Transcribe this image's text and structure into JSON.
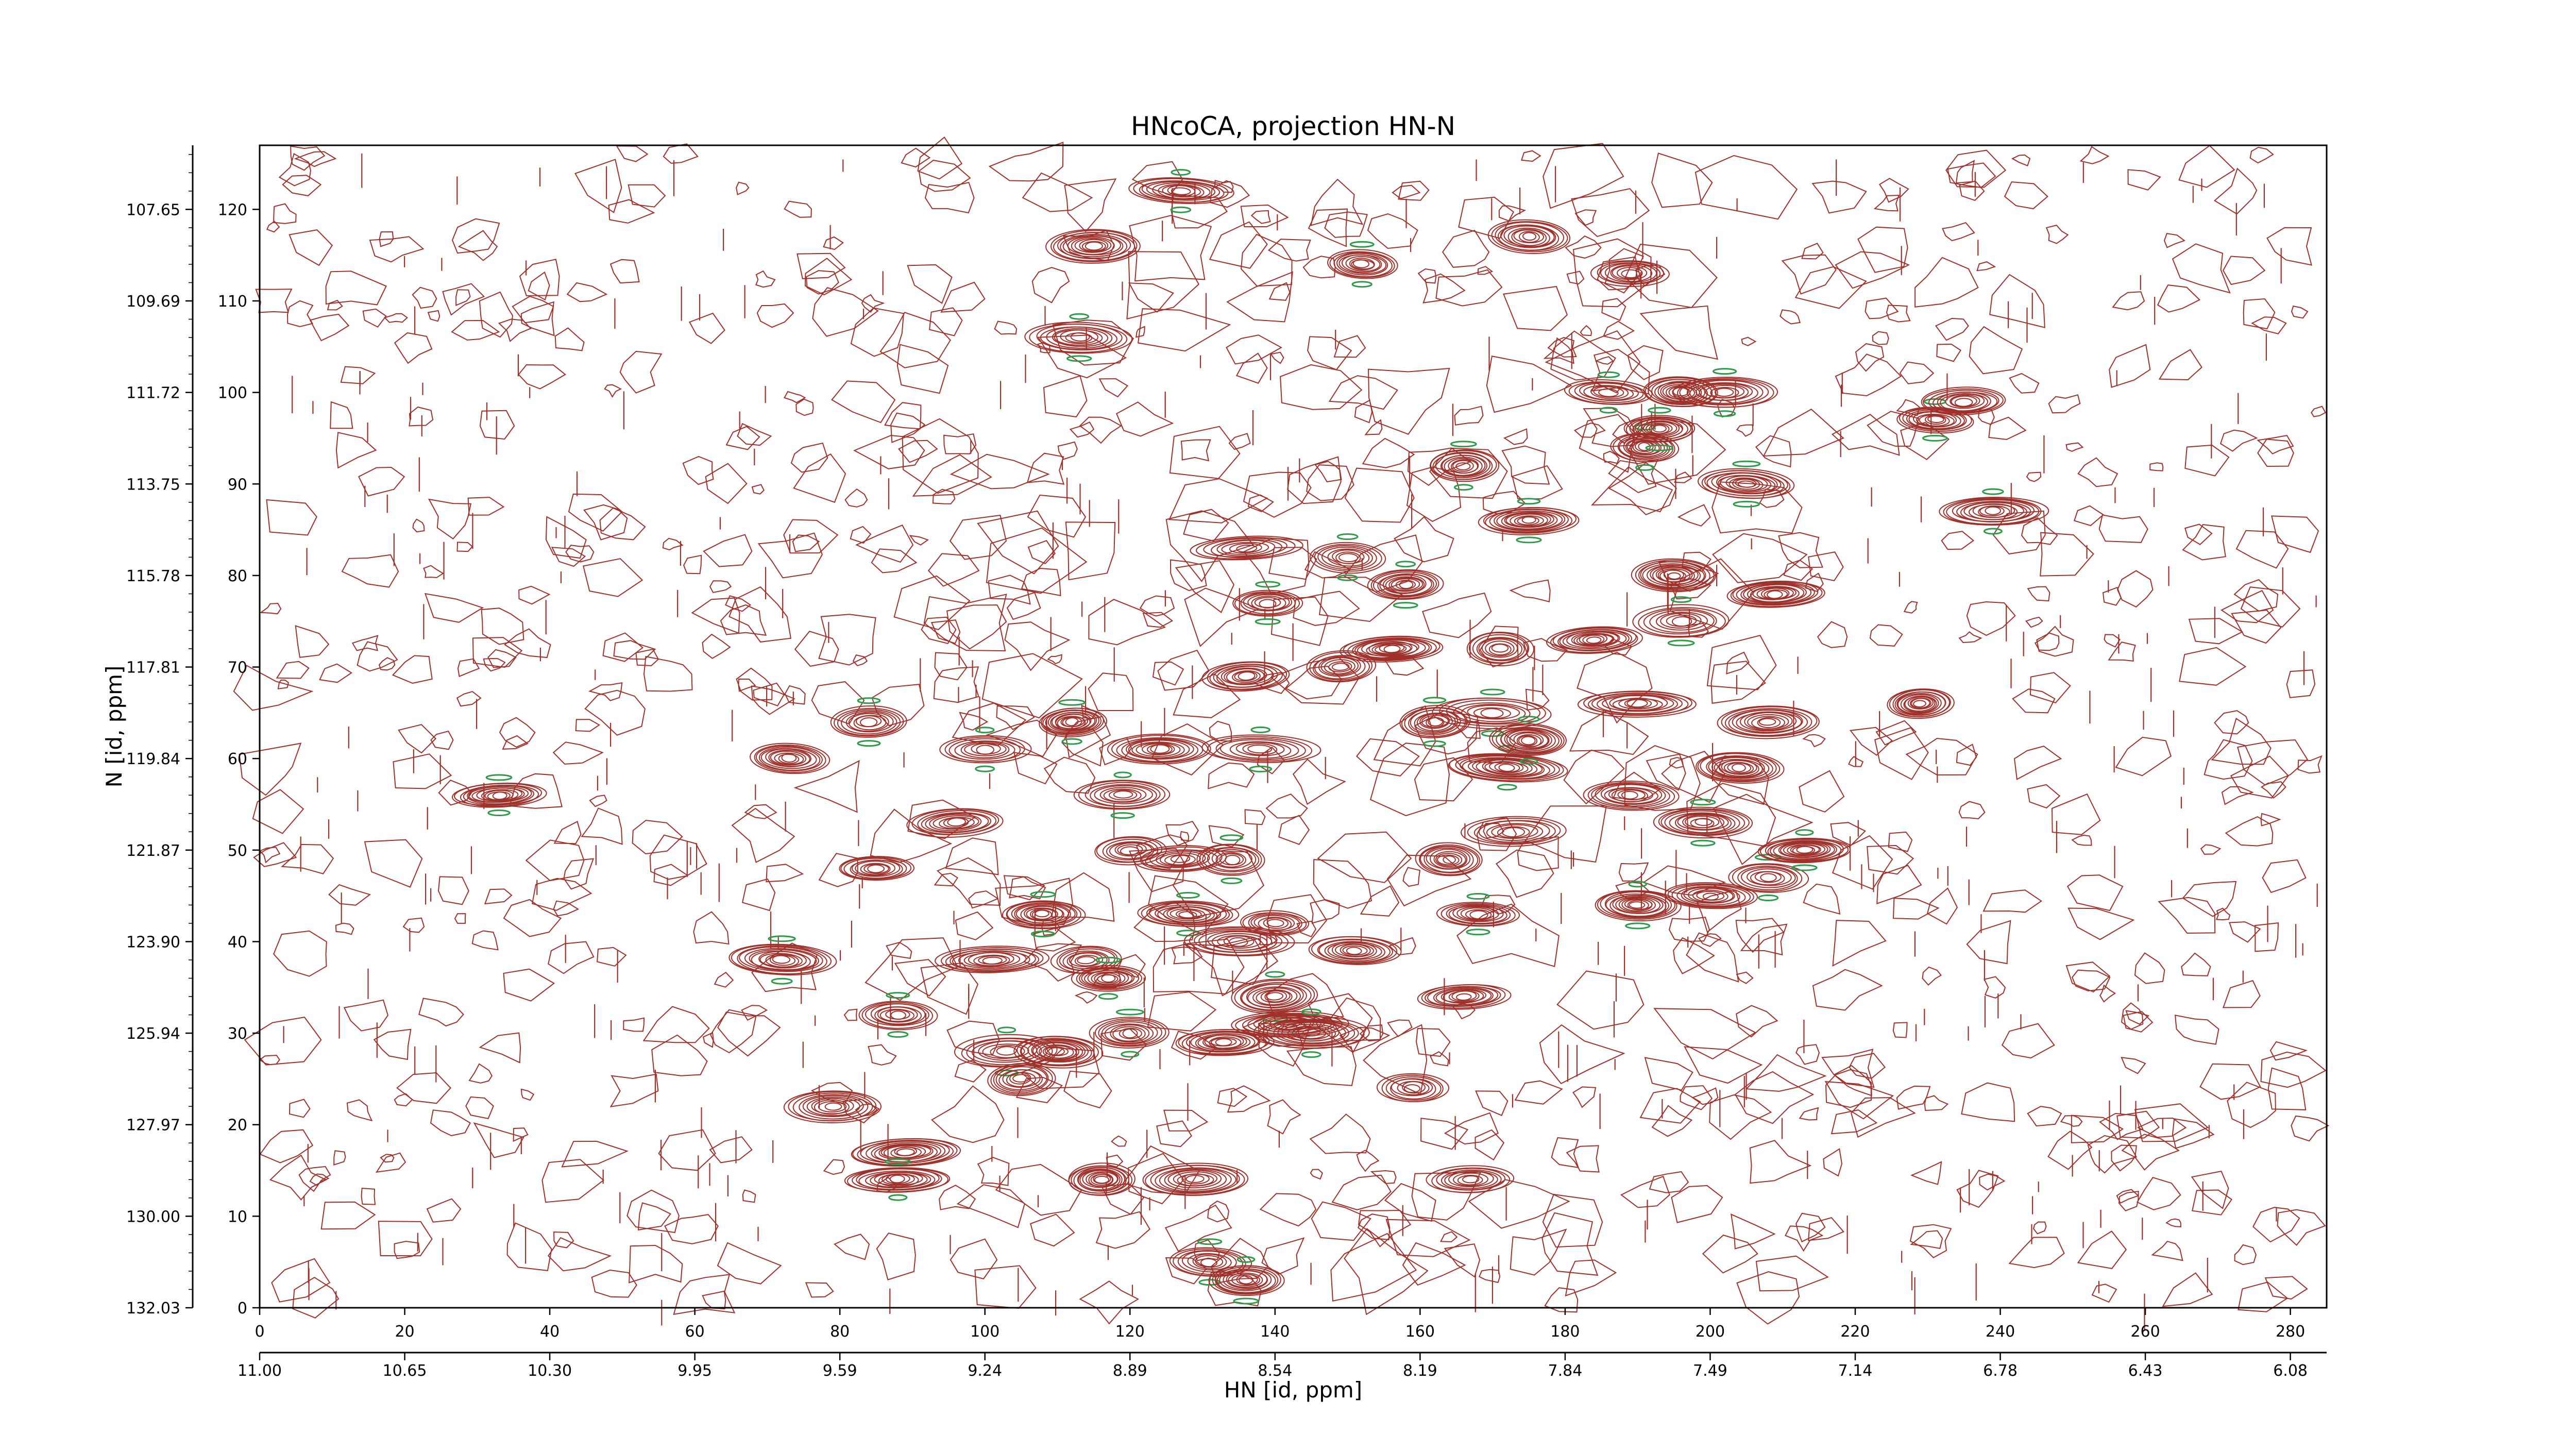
{
  "chart_data": {
    "type": "contour",
    "title": "HNcoCA, projection HN-N",
    "xlabel": "HN [id, ppm]",
    "ylabel": "N [id, ppm]",
    "xlim": [
      0,
      285
    ],
    "ylim": [
      0,
      127
    ],
    "x_index_ticks": [
      "0",
      "20",
      "40",
      "60",
      "80",
      "100",
      "120",
      "140",
      "160",
      "180",
      "200",
      "220",
      "240",
      "260",
      "280"
    ],
    "x_ppm_ticks": [
      "11.00",
      "10.65",
      "10.30",
      "9.95",
      "9.59",
      "9.24",
      "8.89",
      "8.54",
      "8.19",
      "7.84",
      "7.49",
      "7.14",
      "6.78",
      "6.43",
      "6.08"
    ],
    "y_index_ticks": [
      "0",
      "10",
      "20",
      "30",
      "40",
      "50",
      "60",
      "70",
      "80",
      "90",
      "100",
      "110",
      "120"
    ],
    "y_ppm_ticks": [
      "132.03",
      "130.00",
      "127.97",
      "125.94",
      "123.90",
      "121.87",
      "119.84",
      "117.81",
      "115.78",
      "113.75",
      "111.72",
      "109.69",
      "107.65"
    ],
    "grid": false,
    "contour_colors": {
      "positive": "#a0302a",
      "negative": "#2e9a4a"
    },
    "peaks": [
      [
        33,
        56
      ],
      [
        73,
        60
      ],
      [
        84,
        64
      ],
      [
        85,
        48
      ],
      [
        72,
        38
      ],
      [
        79,
        22
      ],
      [
        88,
        32
      ],
      [
        89,
        17
      ],
      [
        88,
        14
      ],
      [
        96,
        53
      ],
      [
        100,
        61
      ],
      [
        101,
        38
      ],
      [
        103,
        28
      ],
      [
        105,
        25
      ],
      [
        108,
        43
      ],
      [
        110,
        28
      ],
      [
        112,
        64
      ],
      [
        115,
        116
      ],
      [
        113,
        106
      ],
      [
        114,
        38
      ],
      [
        117,
        36
      ],
      [
        116,
        14
      ],
      [
        119,
        56
      ],
      [
        120,
        50
      ],
      [
        120,
        30
      ],
      [
        124,
        61
      ],
      [
        127,
        122
      ],
      [
        127,
        49
      ],
      [
        128,
        43
      ],
      [
        129,
        14
      ],
      [
        131,
        5
      ],
      [
        133,
        29
      ],
      [
        134,
        49
      ],
      [
        135,
        40
      ],
      [
        136,
        3
      ],
      [
        136,
        69
      ],
      [
        138,
        61
      ],
      [
        136,
        83
      ],
      [
        139,
        77
      ],
      [
        140,
        42
      ],
      [
        140,
        34
      ],
      [
        142,
        31
      ],
      [
        145,
        30
      ],
      [
        149,
        70
      ],
      [
        150,
        82
      ],
      [
        151,
        39
      ],
      [
        152,
        114
      ],
      [
        156,
        72
      ],
      [
        158,
        79
      ],
      [
        159,
        24
      ],
      [
        162,
        64
      ],
      [
        164,
        49
      ],
      [
        166,
        92
      ],
      [
        166,
        34
      ],
      [
        168,
        43
      ],
      [
        167,
        14
      ],
      [
        170,
        65
      ],
      [
        171,
        72
      ],
      [
        172,
        59
      ],
      [
        173,
        52
      ],
      [
        175,
        86
      ],
      [
        175,
        117
      ],
      [
        175,
        62
      ],
      [
        184,
        73
      ],
      [
        186,
        100
      ],
      [
        189,
        113
      ],
      [
        190,
        44
      ],
      [
        190,
        66
      ],
      [
        191,
        94
      ],
      [
        189,
        56
      ],
      [
        193,
        96
      ],
      [
        195,
        80
      ],
      [
        196,
        75
      ],
      [
        196,
        100
      ],
      [
        199,
        53
      ],
      [
        200,
        45
      ],
      [
        202,
        100
      ],
      [
        204,
        59
      ],
      [
        205,
        90
      ],
      [
        208,
        64
      ],
      [
        208,
        47
      ],
      [
        209,
        78
      ],
      [
        213,
        50
      ],
      [
        229,
        66
      ],
      [
        231,
        97
      ],
      [
        235,
        99
      ],
      [
        239,
        87
      ]
    ]
  }
}
